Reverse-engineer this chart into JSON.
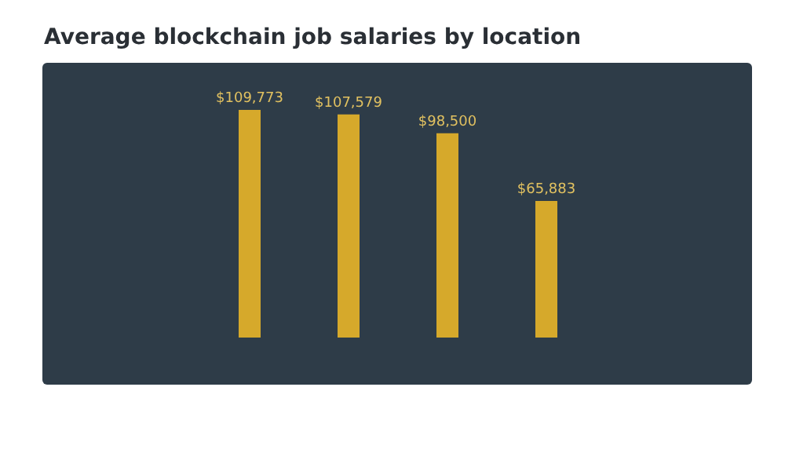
{
  "chart_data": {
    "type": "bar",
    "title": "Average blockchain job salaries by location",
    "categories": [
      null,
      null,
      null,
      null
    ],
    "values": [
      109773,
      107579,
      98500,
      65883
    ],
    "value_labels": [
      "$109,773",
      "$107,579",
      "$98,500",
      "$65,883"
    ],
    "color": "#d6a92b"
  }
}
